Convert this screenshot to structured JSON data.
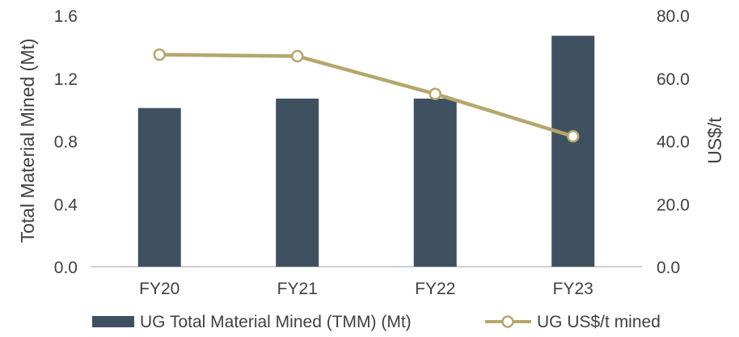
{
  "chart_data": {
    "type": "bar",
    "categories": [
      "FY20",
      "FY21",
      "FY22",
      "FY23"
    ],
    "series": [
      {
        "name": "UG Total Material Mined (TMM) (Mt)",
        "type": "bar",
        "axis": "left",
        "values": [
          1.01,
          1.07,
          1.07,
          1.47
        ],
        "color": "#3f5061"
      },
      {
        "name": "UG US$/t mined",
        "type": "line",
        "axis": "right",
        "values": [
          67.5,
          67.0,
          55.0,
          41.5
        ],
        "color": "#b5a66c",
        "marker": "open-circle"
      }
    ],
    "y_left": {
      "label": "Total Material Mined (Mt)",
      "ylim": [
        0,
        1.6
      ],
      "ticks": [
        "0.0",
        "0.4",
        "0.8",
        "1.2",
        "1.6"
      ]
    },
    "y_right": {
      "label": "US$/t",
      "ylim": [
        0,
        80
      ],
      "ticks": [
        "0.0",
        "20.0",
        "40.0",
        "60.0",
        "80.0"
      ]
    },
    "grid": false,
    "legend_position": "bottom"
  }
}
